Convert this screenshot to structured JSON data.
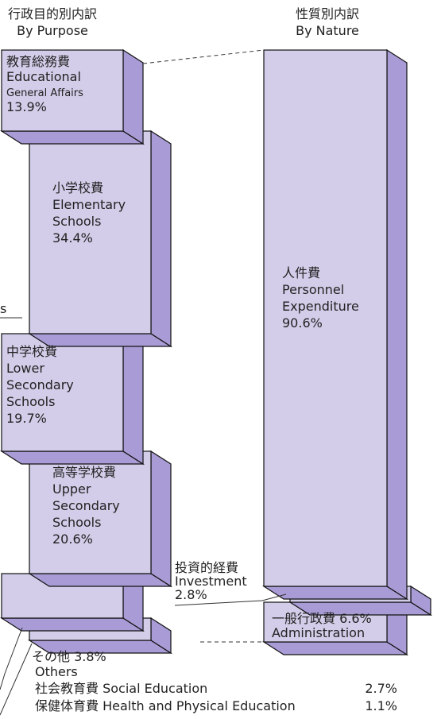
{
  "headers": {
    "purpose": [
      "行政目的別内訳",
      "By  Purpose"
    ],
    "nature": [
      "性質別内訳",
      "By Nature"
    ]
  },
  "purpose_blocks": [
    {
      "lines": [
        "教育総務費",
        "Educational",
        "General Affairs",
        "13.9%"
      ]
    },
    {
      "lines": [
        "小学校費",
        "Elementary",
        "Schools",
        "34.4%"
      ]
    },
    {
      "lines": [
        "中学校費",
        "Lower",
        "Secondary",
        "Schools",
        "19.7%"
      ]
    },
    {
      "lines": [
        "高等学校費",
        "Upper",
        "Secondary",
        "Schools",
        "20.6%"
      ]
    }
  ],
  "cut_label": "s",
  "others": {
    "title": "その他 3.8%",
    "en": "Others",
    "items": [
      {
        "name": "社会教育費 Social Education",
        "value": "2.7%"
      },
      {
        "name": "保健体育費 Health and Physical Education",
        "value": "1.1%"
      }
    ]
  },
  "nature_blocks": [
    {
      "lines": [
        "人件費",
        "Personnel",
        "Expenditure",
        "90.6%"
      ]
    },
    {
      "lines": [
        "投資的経費",
        "Investment",
        "2.8%"
      ]
    },
    {
      "lines": [
        "一般行政費 6.6%",
        "Administration"
      ]
    }
  ]
}
